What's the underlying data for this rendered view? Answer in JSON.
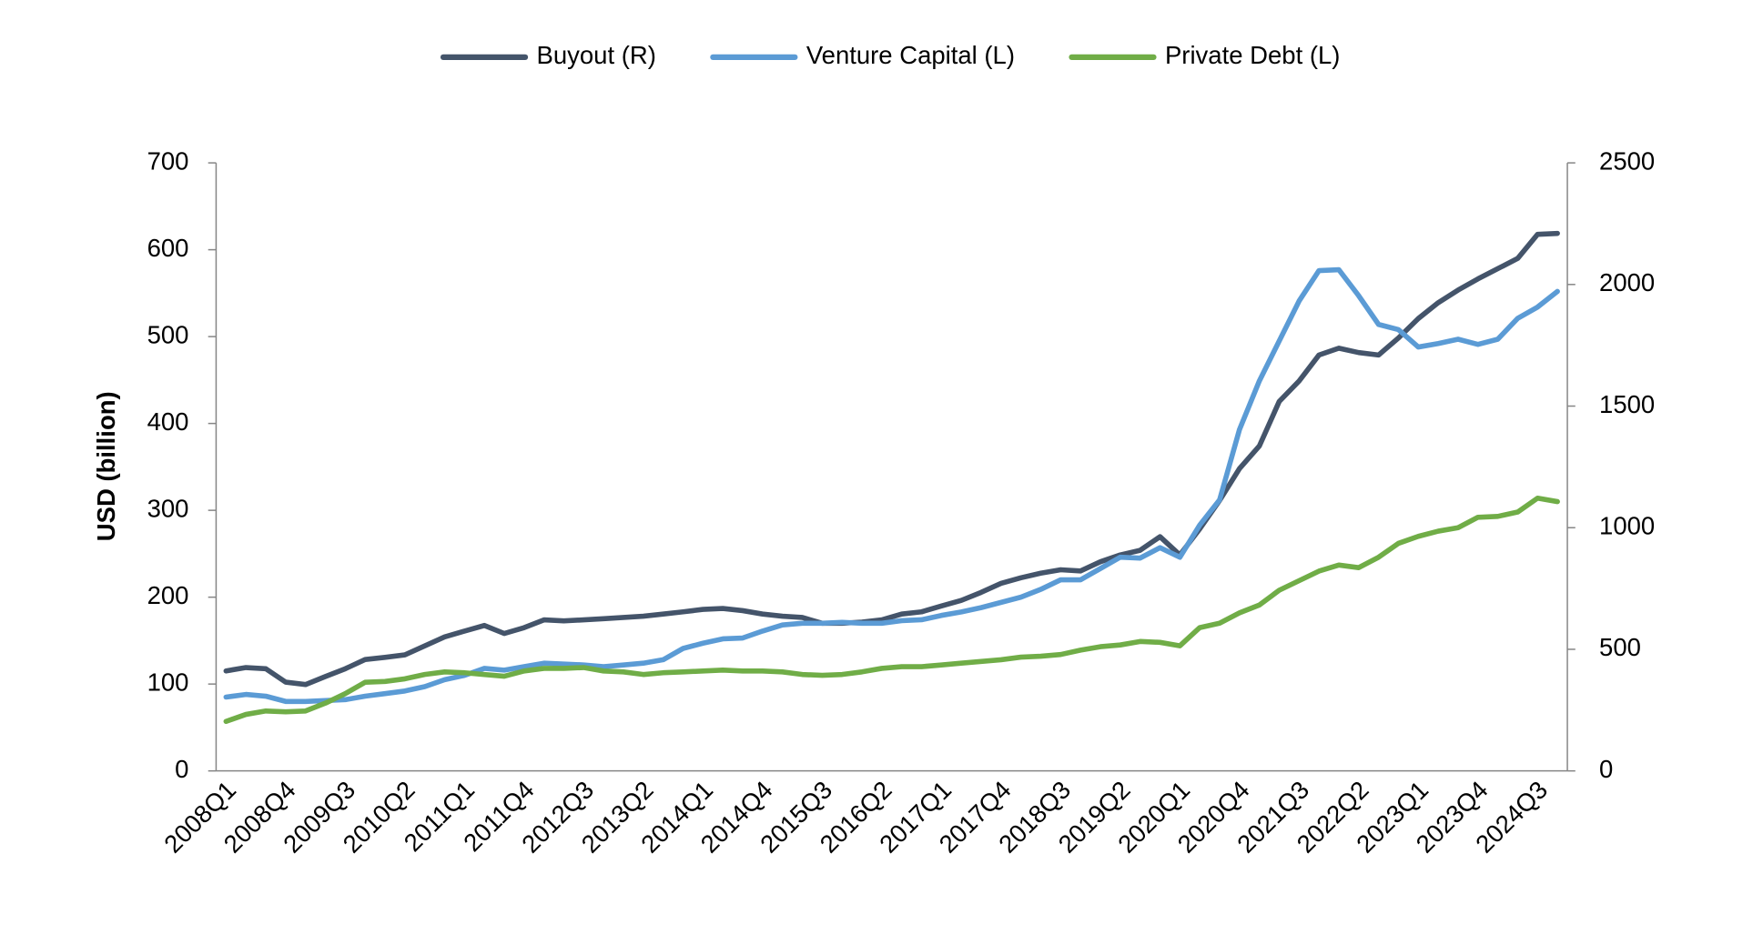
{
  "chart_data": {
    "type": "line",
    "y_label": "USD (billion)",
    "categories": [
      "2008Q1",
      null,
      null,
      "2008Q4",
      null,
      null,
      "2009Q3",
      null,
      null,
      "2010Q2",
      null,
      null,
      "2011Q1",
      null,
      null,
      "2011Q4",
      null,
      null,
      "2012Q3",
      null,
      null,
      "2013Q2",
      null,
      null,
      "2014Q1",
      null,
      null,
      "2014Q4",
      null,
      null,
      "2015Q3",
      null,
      null,
      "2016Q2",
      null,
      null,
      "2017Q1",
      null,
      null,
      "2017Q4",
      null,
      null,
      "2018Q3",
      null,
      null,
      "2019Q2",
      null,
      null,
      "2020Q1",
      null,
      null,
      "2020Q4",
      null,
      null,
      "2021Q3",
      null,
      null,
      "2022Q2",
      null,
      null,
      "2023Q1",
      null,
      null,
      "2023Q4",
      null,
      null,
      "2024Q3",
      null
    ],
    "series": [
      {
        "name": "Buyout (R)",
        "color": "#44546a",
        "axis": "y2",
        "values": [
          411,
          425,
          420,
          365,
          355,
          388,
          420,
          458,
          467,
          477,
          514,
          551,
          575,
          598,
          565,
          589,
          621,
          617,
          621,
          626,
          631,
          636,
          645,
          654,
          664,
          668,
          659,
          645,
          636,
          631,
          607,
          607,
          612,
          621,
          645,
          654,
          678,
          701,
          734,
          771,
          794,
          813,
          827,
          822,
          860,
          888,
          907,
          963,
          888,
          995,
          1112,
          1243,
          1336,
          1519,
          1603,
          1710,
          1738,
          1720,
          1710,
          1780,
          1860,
          1925,
          1977,
          2023,
          2065,
          2107,
          2206,
          2210
        ]
      },
      {
        "name": "Venture Capital (L)",
        "color": "#5b9bd5",
        "values": [
          85,
          88,
          86,
          80,
          80,
          81,
          82,
          86,
          89,
          92,
          97,
          105,
          110,
          118,
          116,
          120,
          124,
          123,
          122,
          120,
          122,
          124,
          128,
          141,
          147,
          152,
          153,
          161,
          168,
          170,
          170,
          171,
          170,
          170,
          173,
          174,
          179,
          183,
          188,
          194,
          200,
          209,
          220,
          220,
          233,
          246,
          245,
          257,
          246,
          283,
          312,
          393,
          449,
          495,
          541,
          576,
          577,
          547,
          514,
          508,
          488,
          492,
          497,
          491,
          497,
          521,
          534,
          552
        ]
      },
      {
        "name": "Private Debt (L)",
        "color": "#70ad47",
        "values": [
          57,
          65,
          69,
          68,
          69,
          78,
          89,
          102,
          103,
          106,
          111,
          114,
          113,
          111,
          109,
          115,
          118,
          118,
          119,
          115,
          114,
          111,
          113,
          114,
          115,
          116,
          115,
          115,
          114,
          111,
          110,
          111,
          114,
          118,
          120,
          120,
          122,
          124,
          126,
          128,
          131,
          132,
          134,
          139,
          143,
          145,
          149,
          148,
          144,
          165,
          170,
          182,
          191,
          208,
          219,
          230,
          237,
          234,
          246,
          262,
          270,
          276,
          280,
          292,
          293,
          298,
          314,
          310
        ]
      }
    ],
    "ylim": [
      0,
      700
    ],
    "yticks": [
      0,
      100,
      200,
      300,
      400,
      500,
      600,
      700
    ],
    "y2lim": [
      0,
      2500
    ],
    "y2ticks": [
      0,
      500,
      1000,
      1500,
      2000,
      2500
    ],
    "legend": "top",
    "grid": false
  }
}
